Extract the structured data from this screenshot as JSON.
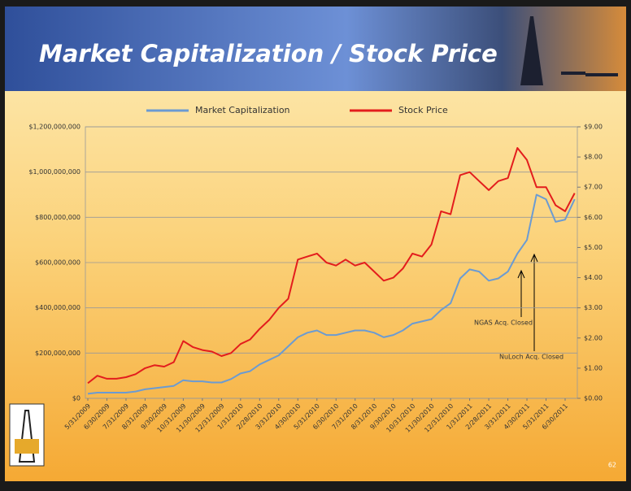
{
  "chart_data": {
    "type": "line",
    "title": "Market Capitalization / Stock Price",
    "categories": [
      "5/31/2009",
      null,
      "6/30/2009",
      null,
      "7/31/2009",
      null,
      "8/31/2009",
      null,
      "9/30/2009",
      null,
      "10/31/2009",
      null,
      "11/30/2009",
      null,
      "12/31/2009",
      null,
      "1/31/2010",
      null,
      "2/28/2010",
      null,
      "3/31/2010",
      null,
      "4/30/2010",
      null,
      "5/31/2010",
      null,
      "6/30/2010",
      null,
      "7/31/2010",
      null,
      "8/31/2010",
      null,
      "9/30/2010",
      null,
      "10/31/2010",
      null,
      "11/30/2010",
      null,
      "12/31/2010",
      null,
      "1/31/2011",
      null,
      "2/28/2011",
      null,
      "3/31/2011",
      null,
      "4/30/2011",
      null,
      "5/31/2011",
      null,
      "6/30/2011",
      null
    ],
    "series": [
      {
        "name": "Market Capitalization",
        "color": "#6b9bd2",
        "values": [
          20000000,
          25000000,
          25000000,
          25000000,
          25000000,
          30000000,
          40000000,
          45000000,
          50000000,
          55000000,
          80000000,
          75000000,
          75000000,
          70000000,
          70000000,
          85000000,
          110000000,
          120000000,
          150000000,
          170000000,
          190000000,
          230000000,
          270000000,
          290000000,
          300000000,
          280000000,
          280000000,
          290000000,
          300000000,
          300000000,
          290000000,
          270000000,
          280000000,
          300000000,
          330000000,
          340000000,
          350000000,
          390000000,
          420000000,
          530000000,
          570000000,
          560000000,
          520000000,
          530000000,
          560000000,
          640000000,
          700000000,
          900000000,
          880000000,
          780000000,
          790000000,
          880000000
        ]
      },
      {
        "name": "Stock Price",
        "color": "#e31d1d",
        "axis": "y2",
        "values": [
          0.5,
          0.75,
          0.65,
          0.65,
          0.7,
          0.8,
          1.0,
          1.1,
          1.05,
          1.2,
          1.9,
          1.7,
          1.6,
          1.55,
          1.4,
          1.5,
          1.8,
          1.95,
          2.3,
          2.6,
          3.0,
          3.3,
          4.6,
          4.7,
          4.8,
          4.5,
          4.4,
          4.6,
          4.4,
          4.5,
          4.2,
          3.9,
          4.0,
          4.3,
          4.8,
          4.7,
          5.1,
          6.2,
          6.1,
          7.4,
          7.5,
          7.2,
          6.9,
          7.2,
          7.3,
          8.3,
          7.9,
          7.0,
          7.0,
          6.4,
          6.2,
          6.8
        ]
      }
    ],
    "ylim": [
      0,
      1200000000
    ],
    "yticks": [
      {
        "value": 0,
        "label": "$0"
      },
      {
        "value": 200000000,
        "label": "$200,000,000"
      },
      {
        "value": 400000000,
        "label": "$400,000,000"
      },
      {
        "value": 600000000,
        "label": "$600,000,000"
      },
      {
        "value": 800000000,
        "label": "$800,000,000"
      },
      {
        "value": 1000000000,
        "label": "$1,000,000,000"
      },
      {
        "value": 1200000000,
        "label": "$1,200,000,000"
      }
    ],
    "y2lim": [
      0,
      9
    ],
    "y2ticks": [
      {
        "value": 0,
        "label": "$0.00"
      },
      {
        "value": 1,
        "label": "$1.00"
      },
      {
        "value": 2,
        "label": "$2.00"
      },
      {
        "value": 3,
        "label": "$3.00"
      },
      {
        "value": 4,
        "label": "$4.00"
      },
      {
        "value": 5,
        "label": "$5.00"
      },
      {
        "value": 6,
        "label": "$6.00"
      },
      {
        "value": 7,
        "label": "$7.00"
      },
      {
        "value": 8,
        "label": "$8.00"
      },
      {
        "value": 9,
        "label": "$9.00"
      }
    ],
    "grid": true,
    "legend": "top",
    "annotations": [
      "NGAS Acq. Closed",
      "NuLoch Acq. Closed"
    ]
  },
  "page_number": "62"
}
